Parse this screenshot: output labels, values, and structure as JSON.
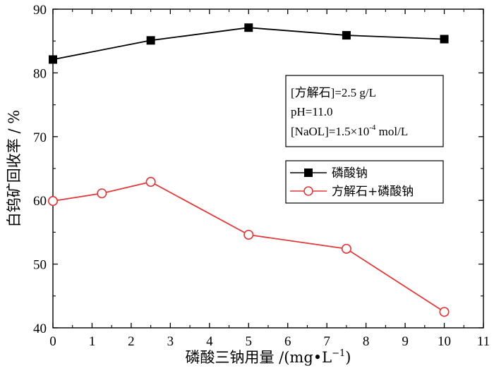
{
  "chart_data": {
    "type": "line",
    "xlabel": "磷酸三钠用量 /(mg•L",
    "xlabel_sup": "−1",
    "xlabel_end": ")",
    "ylabel": "白钨矿回收率 / %",
    "xlim": [
      0,
      11
    ],
    "ylim": [
      40,
      90
    ],
    "xticks": [
      0,
      1,
      2,
      3,
      4,
      5,
      6,
      7,
      8,
      9,
      10,
      11
    ],
    "yticks": [
      40,
      50,
      60,
      70,
      80,
      90
    ],
    "grid": false,
    "legend_position": "right",
    "series": [
      {
        "name": "磷酸钠",
        "color": "#000000",
        "marker": "filled-square",
        "x": [
          0,
          2.5,
          5,
          7.5,
          10
        ],
        "y": [
          82.1,
          85.1,
          87.1,
          85.9,
          85.3
        ]
      },
      {
        "name": "方解石+磷酸钠",
        "color": "#e03a3a",
        "marker": "open-circle",
        "x": [
          0,
          1.25,
          2.5,
          5,
          7.5,
          10
        ],
        "y": [
          59.9,
          61.1,
          62.9,
          54.6,
          52.4,
          42.5
        ]
      }
    ],
    "conditions": {
      "line1": " [方解石]=2.5 g/L",
      "line2": "pH=11.0",
      "line3_prefix": "[NaOL]=1.5×10",
      "line3_sup": "-4",
      "line3_suffix": " mol/L"
    }
  }
}
